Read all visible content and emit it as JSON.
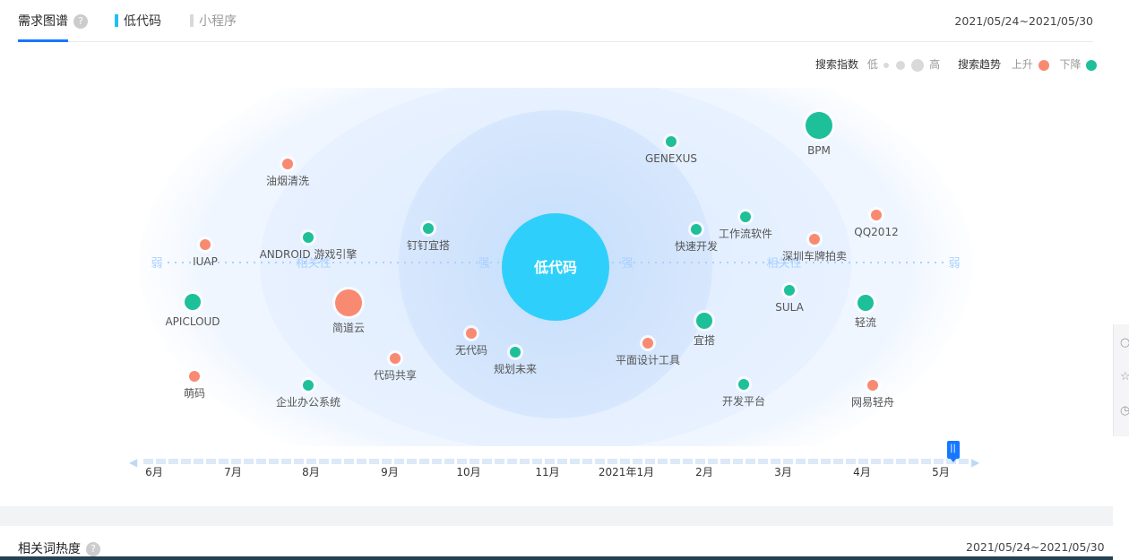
{
  "header": {
    "tabs": [
      {
        "label": "需求图谱",
        "active": true
      },
      {
        "label": "低代码",
        "color": "#1fc1f0"
      },
      {
        "label": "小程序",
        "color": "#d9d9d9"
      }
    ],
    "help_glyph": "?",
    "date_range": "2021/05/24~2021/05/30"
  },
  "legend": {
    "index_label": "搜索指数",
    "low": "低",
    "high": "高",
    "trend_label": "搜索趋势",
    "up": "上升",
    "down": "下降",
    "up_color": "#f98a72",
    "down_color": "#1ec09a"
  },
  "graph": {
    "center": "低代码",
    "center_color": "#2ed0fb",
    "axis": {
      "weak": "弱",
      "strong": "强",
      "relevance": "相关性"
    },
    "nodes": [
      {
        "label": "GENEXUS",
        "trend": "down",
        "size": "small"
      },
      {
        "label": "BPM",
        "trend": "down",
        "size": "large"
      },
      {
        "label": "油烟清洗",
        "trend": "up",
        "size": "small"
      },
      {
        "label": "钉钉宜搭",
        "trend": "down",
        "size": "small"
      },
      {
        "label": "ANDROID 游戏引擎",
        "trend": "down",
        "size": "small"
      },
      {
        "label": "IUAP",
        "trend": "up",
        "size": "small"
      },
      {
        "label": "快速开发",
        "trend": "down",
        "size": "small"
      },
      {
        "label": "工作流软件",
        "trend": "down",
        "size": "small"
      },
      {
        "label": "深圳车牌拍卖",
        "trend": "up",
        "size": "small"
      },
      {
        "label": "QQ2012",
        "trend": "up",
        "size": "small"
      },
      {
        "label": "APICLOUD",
        "trend": "down",
        "size": "medium"
      },
      {
        "label": "简道云",
        "trend": "up",
        "size": "large"
      },
      {
        "label": "SULA",
        "trend": "down",
        "size": "small"
      },
      {
        "label": "轻流",
        "trend": "down",
        "size": "medium"
      },
      {
        "label": "无代码",
        "trend": "up",
        "size": "small"
      },
      {
        "label": "宜搭",
        "trend": "down",
        "size": "medium"
      },
      {
        "label": "规划未来",
        "trend": "down",
        "size": "small"
      },
      {
        "label": "平面设计工具",
        "trend": "up",
        "size": "small"
      },
      {
        "label": "代码共享",
        "trend": "up",
        "size": "small"
      },
      {
        "label": "萌码",
        "trend": "up",
        "size": "small"
      },
      {
        "label": "企业办公系统",
        "trend": "down",
        "size": "small"
      },
      {
        "label": "开发平台",
        "trend": "down",
        "size": "small"
      },
      {
        "label": "网易轻舟",
        "trend": "up",
        "size": "small"
      }
    ]
  },
  "timeline": {
    "months": [
      "6月",
      "7月",
      "8月",
      "9月",
      "10月",
      "11月",
      "2021年1月",
      "2月",
      "3月",
      "4月",
      "5月"
    ],
    "position": 0.98,
    "handle_glyph": "||",
    "prev_glyph": "◀",
    "next_glyph": "▶"
  },
  "section2": {
    "title": "相关词热度",
    "date_range": "2021/05/24~2021/05/30"
  }
}
